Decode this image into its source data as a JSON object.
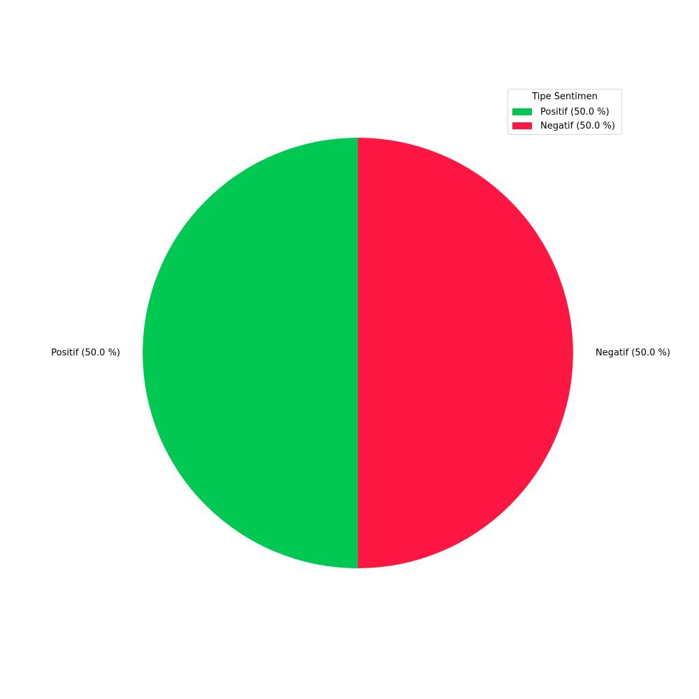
{
  "chart_data": {
    "type": "pie",
    "categories": [
      "Positif (50.0 %)",
      "Negatif (50.0 %)"
    ],
    "values": [
      50.0,
      50.0
    ],
    "colors": [
      "#00c853",
      "#ff1744"
    ],
    "legend": {
      "title": "Tipe Sentimen",
      "placement": "top-right",
      "entries": [
        "Positif (50.0 %)",
        "Negatif (50.0 %)"
      ]
    },
    "start_angle_deg": 90,
    "direction": "counterclockwise"
  }
}
